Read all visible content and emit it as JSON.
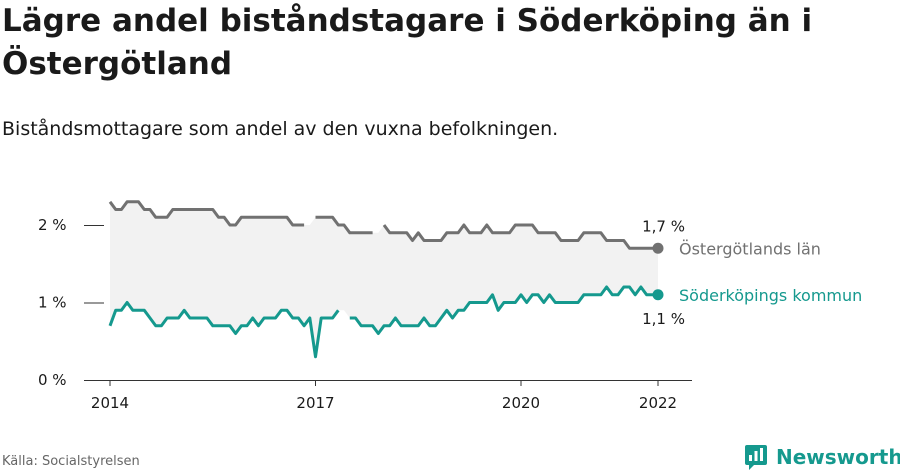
{
  "title": "Lägre andel biståndstagare i Söderköping än i Östergötland",
  "subtitle": "Biståndsmottagare som andel av den vuxna befolkningen.",
  "source": "Källa: Socialstyrelsen",
  "brand": "Newsworthy",
  "colors": {
    "region": "#717171",
    "municipality": "#15998e",
    "band": "#f2f2f2",
    "axis": "#333333",
    "text": "#1a1a1a"
  },
  "chart_data": {
    "type": "line",
    "x_unit": "month",
    "start": "2014-01",
    "ylim": [
      0,
      2.5
    ],
    "yticks": [
      {
        "v": 0,
        "label": "0 %"
      },
      {
        "v": 1,
        "label": "1 %"
      },
      {
        "v": 2,
        "label": "2 %"
      }
    ],
    "xticks": [
      {
        "v": "2014-01",
        "label": "2014"
      },
      {
        "v": "2017-01",
        "label": "2017"
      },
      {
        "v": "2020-01",
        "label": "2020"
      },
      {
        "v": "2022-01",
        "label": "2022"
      }
    ],
    "grid": false,
    "band_between_series": true,
    "series": [
      {
        "name": "Östergötlands län",
        "end_label": "1,7 %",
        "values": [
          2.3,
          2.2,
          2.2,
          2.3,
          2.3,
          2.3,
          2.2,
          2.2,
          2.1,
          2.1,
          2.1,
          2.2,
          2.2,
          2.2,
          2.2,
          2.2,
          2.2,
          2.2,
          2.2,
          2.1,
          2.1,
          2.0,
          2.0,
          2.1,
          2.1,
          2.1,
          2.1,
          2.1,
          2.1,
          2.1,
          2.1,
          2.1,
          2.0,
          2.0,
          2.0,
          null,
          2.1,
          2.1,
          2.1,
          2.1,
          2.0,
          2.0,
          1.9,
          1.9,
          1.9,
          1.9,
          1.9,
          null,
          2.0,
          1.9,
          1.9,
          1.9,
          1.9,
          1.8,
          1.9,
          1.8,
          1.8,
          1.8,
          1.8,
          1.9,
          1.9,
          1.9,
          2.0,
          1.9,
          1.9,
          1.9,
          2.0,
          1.9,
          1.9,
          1.9,
          1.9,
          2.0,
          2.0,
          2.0,
          2.0,
          1.9,
          1.9,
          1.9,
          1.9,
          1.8,
          1.8,
          1.8,
          1.8,
          1.9,
          1.9,
          1.9,
          1.9,
          1.8,
          1.8,
          1.8,
          1.8,
          1.7,
          1.7,
          1.7,
          1.7,
          1.7,
          1.7
        ]
      },
      {
        "name": "Söderköpings kommun",
        "end_label": "1,1 %",
        "values": [
          0.7,
          0.9,
          0.9,
          1.0,
          0.9,
          0.9,
          0.9,
          0.8,
          0.7,
          0.7,
          0.8,
          0.8,
          0.8,
          0.9,
          0.8,
          0.8,
          0.8,
          0.8,
          0.7,
          0.7,
          0.7,
          0.7,
          0.6,
          0.7,
          0.7,
          0.8,
          0.7,
          0.8,
          0.8,
          0.8,
          0.9,
          0.9,
          0.8,
          0.8,
          0.7,
          0.8,
          0.3,
          0.8,
          0.8,
          0.8,
          0.9,
          null,
          0.8,
          0.8,
          0.7,
          0.7,
          0.7,
          0.6,
          0.7,
          0.7,
          0.8,
          0.7,
          0.7,
          0.7,
          0.7,
          0.8,
          0.7,
          0.7,
          0.8,
          0.9,
          0.8,
          0.9,
          0.9,
          1.0,
          1.0,
          1.0,
          1.0,
          1.1,
          0.9,
          1.0,
          1.0,
          1.0,
          1.1,
          1.0,
          1.1,
          1.1,
          1.0,
          1.1,
          1.0,
          1.0,
          1.0,
          1.0,
          1.0,
          1.1,
          1.1,
          1.1,
          1.1,
          1.2,
          1.1,
          1.1,
          1.2,
          1.2,
          1.1,
          1.2,
          1.1,
          1.1,
          1.1
        ]
      }
    ]
  }
}
